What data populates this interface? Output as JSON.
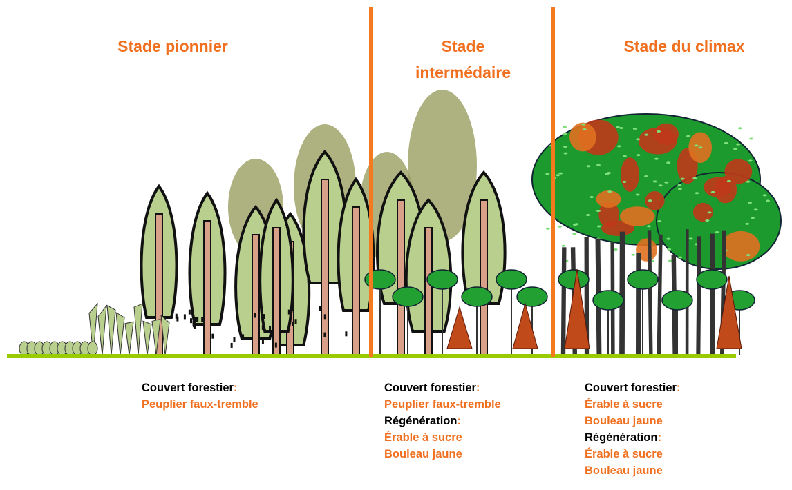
{
  "stages": [
    {
      "title": "Stade pionnier",
      "sections": [
        {
          "label": "Couvert forestier",
          "punct": ":",
          "species": [
            "Peuplier faux-tremble"
          ]
        }
      ]
    },
    {
      "title": "Stade intermédaire",
      "sections": [
        {
          "label": "Couvert forestier",
          "punct": ":",
          "species": [
            "Peuplier faux-tremble"
          ]
        },
        {
          "label": "Régénération",
          "punct": ":",
          "species": [
            "Érable à sucre",
            "Bouleau jaune"
          ]
        }
      ]
    },
    {
      "title": "Stade du climax",
      "sections": [
        {
          "label": "Couvert forestier",
          "punct": ":",
          "species": [
            "Érable à sucre",
            "Bouleau jaune"
          ]
        },
        {
          "label": "Régénération",
          "punct": ":",
          "species": [
            "Érable à sucre",
            "Bouleau jaune"
          ]
        }
      ]
    }
  ]
}
